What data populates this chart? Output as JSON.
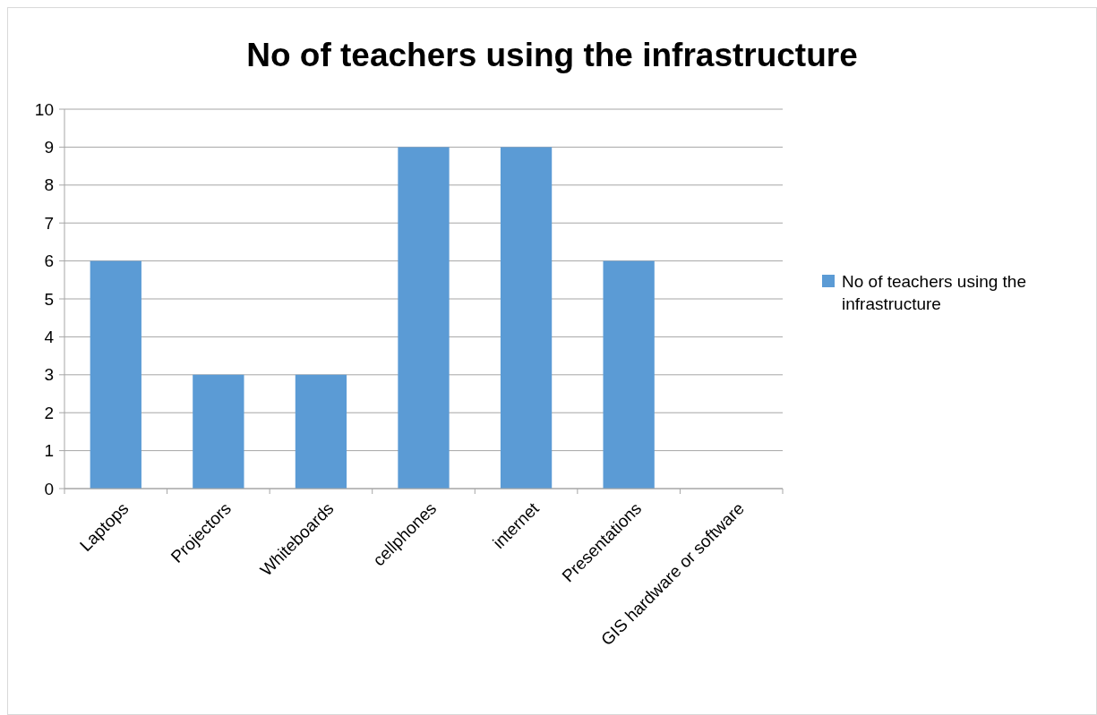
{
  "chart_data": {
    "type": "bar",
    "title": "No of teachers using the infrastructure",
    "categories": [
      "Laptops",
      "Projectors",
      "Whiteboards",
      "cellphones",
      "internet",
      "Presentations",
      "GIS hardware or software"
    ],
    "series": [
      {
        "name": "No of teachers using the infrastructure",
        "color": "#5b9bd5",
        "values": [
          6,
          3,
          3,
          9,
          9,
          6,
          0
        ]
      }
    ],
    "ylim": [
      0,
      10
    ],
    "yticks": [
      0,
      1,
      2,
      3,
      4,
      5,
      6,
      7,
      8,
      9,
      10
    ],
    "grid": "y",
    "legend": "right"
  }
}
